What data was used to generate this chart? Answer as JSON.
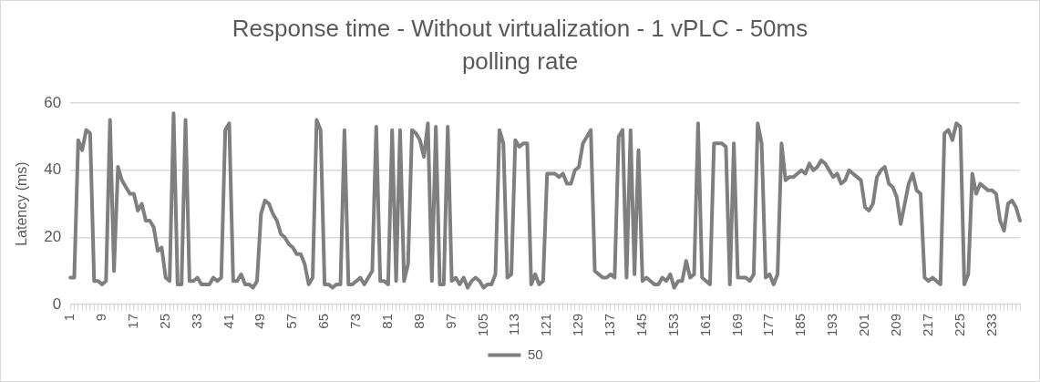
{
  "chart_data": {
    "type": "line",
    "title": "Response time - Without virtualization - 1 vPLC - 50ms polling rate",
    "ylabel": "Latency (ms)",
    "categories": [
      "1",
      null,
      null,
      null,
      null,
      null,
      null,
      null,
      "9",
      null,
      null,
      null,
      null,
      null,
      null,
      null,
      "17",
      null,
      null,
      null,
      null,
      null,
      null,
      null,
      "25",
      null,
      null,
      null,
      null,
      null,
      null,
      null,
      "33",
      null,
      null,
      null,
      null,
      null,
      null,
      null,
      "41",
      null,
      null,
      null,
      null,
      null,
      null,
      null,
      "49",
      null,
      null,
      null,
      null,
      null,
      null,
      null,
      "57",
      null,
      null,
      null,
      null,
      null,
      null,
      null,
      "65",
      null,
      null,
      null,
      null,
      null,
      null,
      null,
      "73",
      null,
      null,
      null,
      null,
      null,
      null,
      null,
      "81",
      null,
      null,
      null,
      null,
      null,
      null,
      null,
      "89",
      null,
      null,
      null,
      null,
      null,
      null,
      null,
      "97",
      null,
      null,
      null,
      null,
      null,
      null,
      null,
      "105",
      null,
      null,
      null,
      null,
      null,
      null,
      null,
      "113",
      null,
      null,
      null,
      null,
      null,
      null,
      null,
      "121",
      null,
      null,
      null,
      null,
      null,
      null,
      null,
      "129",
      null,
      null,
      null,
      null,
      null,
      null,
      null,
      "137",
      null,
      null,
      null,
      null,
      null,
      null,
      null,
      "145",
      null,
      null,
      null,
      null,
      null,
      null,
      null,
      "153",
      null,
      null,
      null,
      null,
      null,
      null,
      null,
      "161",
      null,
      null,
      null,
      null,
      null,
      null,
      null,
      "169",
      null,
      null,
      null,
      null,
      null,
      null,
      null,
      "177",
      null,
      null,
      null,
      null,
      null,
      null,
      null,
      "185",
      null,
      null,
      null,
      null,
      null,
      null,
      null,
      "193",
      null,
      null,
      null,
      null,
      null,
      null,
      null,
      "201",
      null,
      null,
      null,
      null,
      null,
      null,
      null,
      "209",
      null,
      null,
      null,
      null,
      null,
      null,
      null,
      "217",
      null,
      null,
      null,
      null,
      null,
      null,
      null,
      "225",
      null,
      null,
      null,
      null,
      null,
      null,
      null,
      "233",
      null,
      null,
      null,
      null,
      null,
      null,
      null
    ],
    "series": [
      {
        "name": "50",
        "color": "#7f7f7f",
        "values": [
          8,
          8,
          49,
          46,
          52,
          51,
          7,
          7,
          6,
          7,
          55,
          10,
          41,
          37,
          35,
          33,
          33,
          28,
          30,
          25,
          25,
          23,
          16,
          17,
          8,
          7,
          57,
          6,
          6,
          55,
          7,
          7,
          8,
          6,
          6,
          6,
          8,
          7,
          8,
          52,
          54,
          7,
          7,
          9,
          6,
          6,
          5,
          7,
          27,
          31,
          30,
          27,
          25,
          21,
          20,
          18,
          17,
          15,
          15,
          12,
          6,
          8,
          55,
          52,
          6,
          6,
          5,
          6,
          6,
          52,
          6,
          6,
          7,
          8,
          6,
          8,
          10,
          53,
          7,
          7,
          6,
          52,
          7,
          52,
          7,
          12,
          52,
          51,
          49,
          44,
          54,
          7,
          53,
          6,
          6,
          53,
          7,
          8,
          6,
          8,
          5,
          7,
          8,
          7,
          5,
          6,
          6,
          9,
          52,
          48,
          8,
          9,
          49,
          47,
          48,
          48,
          6,
          9,
          6,
          7,
          39,
          39,
          39,
          38,
          39,
          36,
          36,
          40,
          41,
          48,
          50,
          52,
          10,
          9,
          8,
          8,
          9,
          8,
          50,
          52,
          8,
          52,
          9,
          46,
          7,
          8,
          7,
          6,
          6,
          8,
          7,
          9,
          5,
          7,
          7,
          13,
          8,
          9,
          54,
          8,
          7,
          6,
          48,
          48,
          48,
          47,
          6,
          48,
          8,
          8,
          8,
          7,
          9,
          54,
          48,
          8,
          9,
          6,
          9,
          48,
          37,
          38,
          38,
          39,
          40,
          39,
          42,
          40,
          41,
          43,
          42,
          40,
          38,
          39,
          36,
          37,
          40,
          39,
          38,
          37,
          29,
          28,
          30,
          38,
          40,
          41,
          36,
          35,
          32,
          24,
          30,
          36,
          39,
          34,
          33,
          8,
          7,
          8,
          7,
          6,
          51,
          52,
          49,
          54,
          53,
          6,
          9,
          39,
          33,
          36,
          35,
          34,
          34,
          33,
          25,
          22,
          30,
          31,
          29,
          25
        ]
      }
    ],
    "ylim": [
      0,
      60
    ],
    "yticks": [
      0,
      20,
      40,
      60
    ],
    "grid": "y",
    "legend": "bottom",
    "marker": "none",
    "line_style": "solid"
  }
}
